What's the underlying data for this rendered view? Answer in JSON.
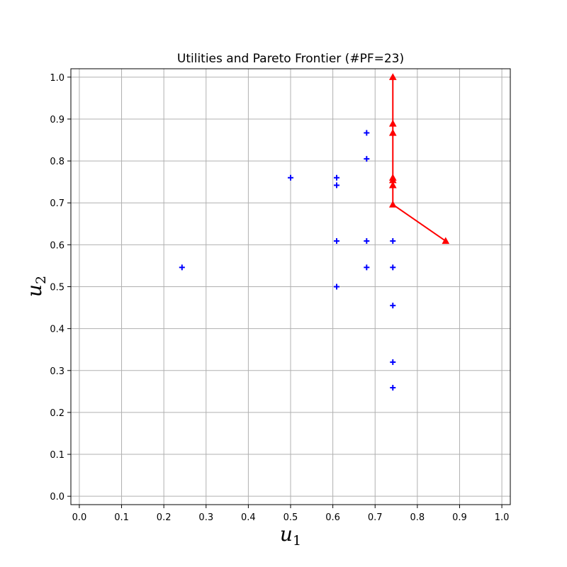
{
  "chart_data": {
    "type": "scatter",
    "title": "Utilities and Pareto Frontier (#PF=23)",
    "xlabel": "u",
    "xlabel_sub": "1",
    "ylabel": "u",
    "ylabel_sub": "2",
    "xlim": [
      -0.02,
      1.02
    ],
    "ylim": [
      -0.02,
      1.02
    ],
    "xticks": [
      "0.0",
      "0.1",
      "0.2",
      "0.3",
      "0.4",
      "0.5",
      "0.6",
      "0.7",
      "0.8",
      "0.9",
      "1.0"
    ],
    "yticks": [
      "0.0",
      "0.1",
      "0.2",
      "0.3",
      "0.4",
      "0.5",
      "0.6",
      "0.7",
      "0.8",
      "0.9",
      "1.0"
    ],
    "grid": true,
    "series": [
      {
        "marker": "plus",
        "color": "#0000ff",
        "points": [
          [
            0.243,
            0.546
          ],
          [
            0.5,
            0.76
          ],
          [
            0.609,
            0.76
          ],
          [
            0.609,
            0.742
          ],
          [
            0.609,
            0.609
          ],
          [
            0.609,
            0.5
          ],
          [
            0.68,
            0.867
          ],
          [
            0.68,
            0.805
          ],
          [
            0.68,
            0.609
          ],
          [
            0.68,
            0.546
          ],
          [
            0.742,
            0.609
          ],
          [
            0.742,
            0.546
          ],
          [
            0.742,
            0.455
          ],
          [
            0.742,
            0.32
          ],
          [
            0.742,
            0.259
          ]
        ]
      },
      {
        "marker": "triangle",
        "line": true,
        "color": "#ff0000",
        "points": [
          [
            0.742,
            1.0
          ],
          [
            0.742,
            0.889
          ],
          [
            0.742,
            0.867
          ],
          [
            0.742,
            0.76
          ],
          [
            0.742,
            0.754
          ],
          [
            0.742,
            0.742
          ],
          [
            0.742,
            0.696
          ],
          [
            0.867,
            0.609
          ]
        ]
      }
    ]
  }
}
